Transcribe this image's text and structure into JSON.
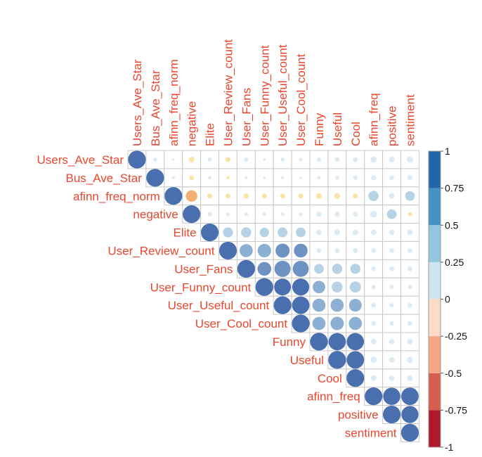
{
  "chart_data": {
    "type": "heatmap",
    "subtype": "correlogram-upper-circles",
    "variables": [
      "Users_Ave_Star",
      "Bus_Ave_Star",
      "afinn_freq_norm",
      "negative",
      "Elite",
      "User_Review_count",
      "User_Fans",
      "User_Funny_count",
      "User_Useful_count",
      "User_Cool_count",
      "Funny",
      "Useful",
      "Cool",
      "afinn_freq",
      "positive",
      "sentiment"
    ],
    "matrix": [
      [
        1,
        0.05,
        0.02,
        -0.1,
        0.06,
        -0.08,
        0.06,
        0.02,
        0.05,
        0.04,
        0.06,
        0.07,
        0.08,
        0.12,
        0.1,
        0.12
      ],
      [
        0.05,
        1,
        0.03,
        -0.07,
        0.04,
        -0.03,
        0.03,
        0.02,
        0.03,
        0.02,
        0.04,
        0.05,
        0.06,
        0.08,
        0.07,
        0.08
      ],
      [
        0.02,
        0.03,
        1,
        -0.42,
        -0.08,
        -0.08,
        -0.09,
        -0.08,
        -0.08,
        -0.08,
        -0.1,
        -0.11,
        -0.08,
        0.33,
        0.1,
        0.3
      ],
      [
        -0.1,
        -0.07,
        -0.42,
        1,
        0.06,
        0.05,
        0.05,
        0.04,
        0.05,
        0.05,
        0.08,
        0.09,
        0.07,
        0.15,
        0.3,
        -0.05
      ],
      [
        0.06,
        0.04,
        -0.08,
        0.06,
        1,
        0.32,
        0.33,
        0.28,
        0.31,
        0.3,
        0.1,
        0.11,
        0.1,
        0.1,
        0.09,
        0.1
      ],
      [
        -0.08,
        -0.03,
        -0.08,
        0.05,
        0.32,
        1,
        0.55,
        0.58,
        0.63,
        0.6,
        0.07,
        0.08,
        0.08,
        0.07,
        0.07,
        0.07
      ],
      [
        0.06,
        0.03,
        -0.09,
        0.05,
        0.33,
        0.55,
        1,
        0.6,
        0.83,
        0.82,
        0.3,
        0.33,
        0.33,
        0.07,
        0.07,
        0.07
      ],
      [
        0.02,
        0.02,
        -0.08,
        0.04,
        0.28,
        0.58,
        0.6,
        1,
        0.9,
        0.92,
        0.5,
        0.38,
        0.4,
        0.06,
        0.06,
        0.06
      ],
      [
        0.05,
        0.03,
        -0.08,
        0.05,
        0.31,
        0.63,
        0.83,
        0.9,
        1,
        0.97,
        0.55,
        0.55,
        0.52,
        0.07,
        0.06,
        0.07
      ],
      [
        0.04,
        0.02,
        -0.08,
        0.05,
        0.3,
        0.6,
        0.82,
        0.92,
        0.97,
        1,
        0.55,
        0.57,
        0.55,
        0.07,
        0.06,
        0.07
      ],
      [
        0.06,
        0.04,
        -0.1,
        0.08,
        0.1,
        0.07,
        0.3,
        0.5,
        0.55,
        0.55,
        1,
        0.95,
        0.95,
        0.1,
        0.09,
        0.1
      ],
      [
        0.07,
        0.05,
        -0.11,
        0.09,
        0.11,
        0.08,
        0.33,
        0.38,
        0.55,
        0.57,
        0.95,
        1,
        0.97,
        0.12,
        0.1,
        0.12
      ],
      [
        0.08,
        0.06,
        -0.08,
        0.07,
        0.1,
        0.08,
        0.33,
        0.4,
        0.52,
        0.55,
        0.95,
        0.97,
        1,
        0.1,
        0.09,
        0.1
      ],
      [
        0.12,
        0.08,
        0.33,
        0.15,
        0.1,
        0.07,
        0.07,
        0.06,
        0.07,
        0.07,
        0.1,
        0.12,
        0.1,
        1,
        0.95,
        0.97
      ],
      [
        0.1,
        0.07,
        0.1,
        0.3,
        0.09,
        0.07,
        0.07,
        0.06,
        0.06,
        0.06,
        0.09,
        0.1,
        0.09,
        0.95,
        1,
        0.93
      ],
      [
        0.12,
        0.08,
        0.3,
        -0.05,
        0.1,
        0.07,
        0.07,
        0.06,
        0.07,
        0.07,
        0.1,
        0.12,
        0.1,
        0.97,
        0.93,
        1
      ]
    ],
    "color_scale": {
      "range": [
        -1,
        1
      ],
      "ticks": [
        "1",
        "0.75",
        "0.5",
        "0.25",
        "0",
        "-0.25",
        "-0.5",
        "-0.75",
        "-1"
      ],
      "bins": [
        "#B2182B",
        "#D6604D",
        "#F4A582",
        "#FDDBC7",
        "#D1E5F0",
        "#92C5DE",
        "#4393C3",
        "#2166AC"
      ],
      "legend_placement": "right"
    },
    "label_color": "#E8472E",
    "grid_color": "#C8C8C8"
  }
}
